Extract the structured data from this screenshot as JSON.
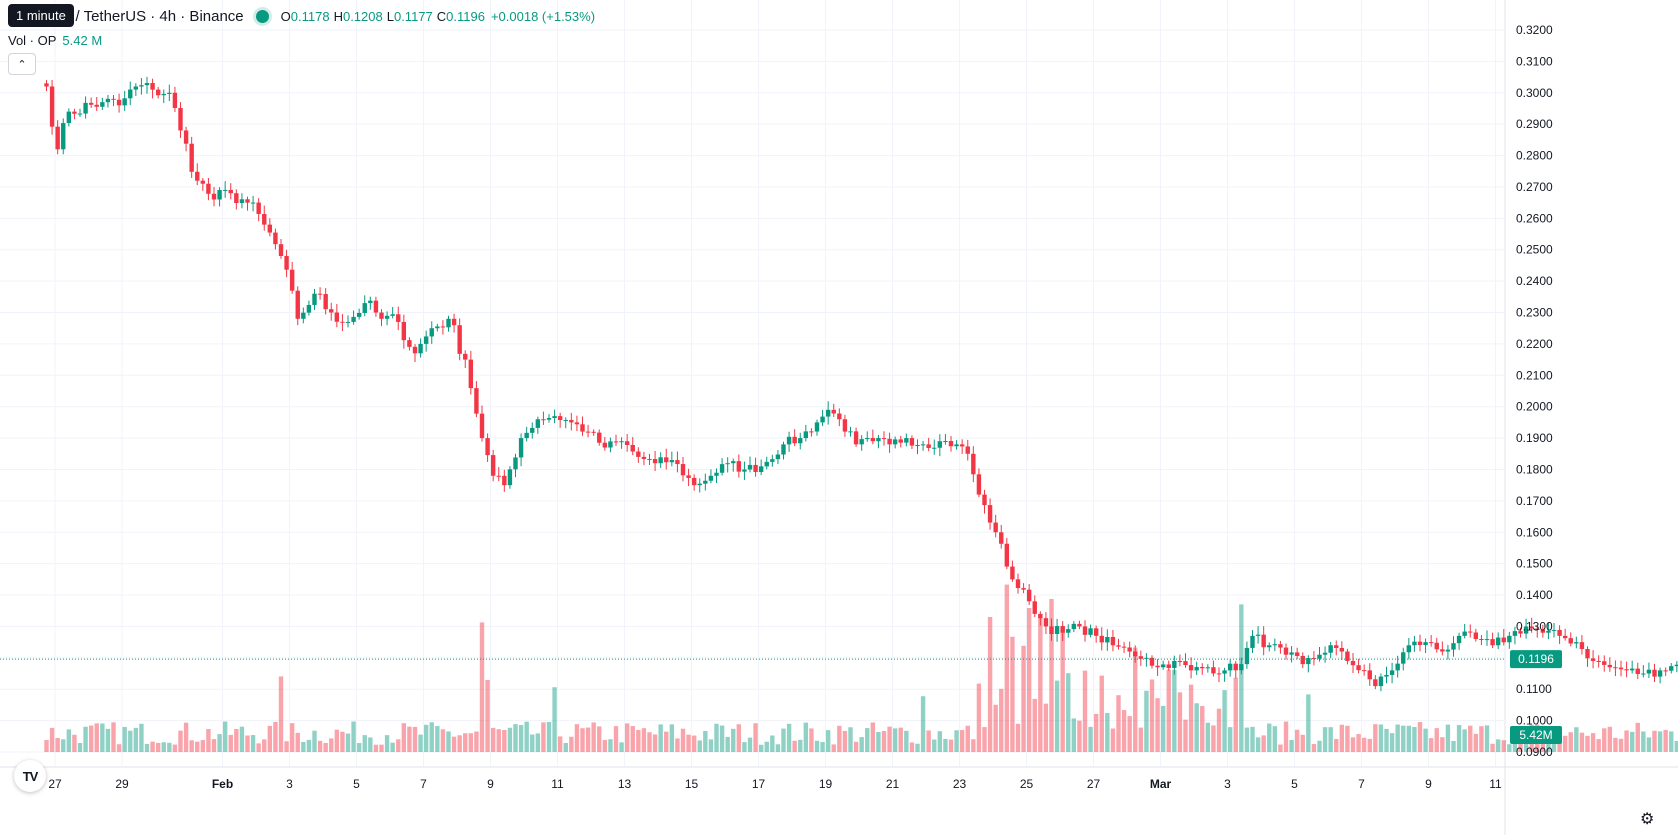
{
  "tooltip": "1 minute",
  "header": {
    "symbol": "Optimism / TetherUS · 4h · Binance",
    "open_label": "O",
    "open": "0.1178",
    "high_label": "H",
    "high": "0.1208",
    "low_label": "L",
    "low": "0.1177",
    "close_label": "C",
    "close": "0.1196",
    "change": "+0.0018 (+1.53%)"
  },
  "volume_legend": {
    "label": "Vol · OP",
    "value": "5.42 M"
  },
  "icons": {
    "collapse": "chevron-up-icon",
    "logo": "tradingview-logo-icon",
    "settings": "gear-icon"
  },
  "colors": {
    "up": "#089981",
    "down": "#F23645",
    "grid": "#F0F3FA",
    "axis_text": "#131722"
  },
  "chart_data": {
    "type": "candlestick",
    "interval": "4h",
    "y_ticks": [
      "0.3200",
      "0.3100",
      "0.3000",
      "0.2900",
      "0.2800",
      "0.2700",
      "0.2600",
      "0.2500",
      "0.2400",
      "0.2300",
      "0.2200",
      "0.2100",
      "0.2000",
      "0.1900",
      "0.1800",
      "0.1700",
      "0.1600",
      "0.1500",
      "0.1400",
      "0.1300",
      "0.1200",
      "0.1100",
      "0.1000",
      "0.0900"
    ],
    "ylim": [
      0.0895,
      0.32
    ],
    "x_ticks": [
      "27",
      "29",
      "Feb",
      "3",
      "5",
      "7",
      "9",
      "11",
      "13",
      "15",
      "17",
      "19",
      "21",
      "23",
      "25",
      "27",
      "Mar",
      "3",
      "5",
      "7",
      "9",
      "11"
    ],
    "x_tick_days": [
      0,
      2,
      5,
      7,
      9,
      11,
      13,
      15,
      17,
      19,
      21,
      23,
      25,
      27,
      29,
      31,
      33,
      35,
      37,
      39,
      41,
      43
    ],
    "candles_per_day": 6,
    "last_price": "0.1196",
    "volume_label": "5.42M",
    "close_anchors": [
      [
        0,
        0.302
      ],
      [
        2,
        0.282
      ],
      [
        4,
        0.294
      ],
      [
        10,
        0.297
      ],
      [
        13,
        0.296
      ],
      [
        16,
        0.302
      ],
      [
        19,
        0.301
      ],
      [
        22,
        0.3
      ],
      [
        24,
        0.288
      ],
      [
        27,
        0.272
      ],
      [
        30,
        0.266
      ],
      [
        33,
        0.268
      ],
      [
        36,
        0.265
      ],
      [
        39,
        0.258
      ],
      [
        42,
        0.248
      ],
      [
        45,
        0.228
      ],
      [
        48,
        0.236
      ],
      [
        51,
        0.23
      ],
      [
        54,
        0.227
      ],
      [
        57,
        0.233
      ],
      [
        60,
        0.228
      ],
      [
        63,
        0.227
      ],
      [
        66,
        0.217
      ],
      [
        69,
        0.225
      ],
      [
        72,
        0.228
      ],
      [
        75,
        0.215
      ],
      [
        78,
        0.19
      ],
      [
        80,
        0.178
      ],
      [
        82,
        0.175
      ],
      [
        85,
        0.19
      ],
      [
        88,
        0.196
      ],
      [
        91,
        0.197
      ],
      [
        94,
        0.195
      ],
      [
        97,
        0.192
      ],
      [
        100,
        0.187
      ],
      [
        103,
        0.189
      ],
      [
        106,
        0.184
      ],
      [
        109,
        0.182
      ],
      [
        112,
        0.183
      ],
      [
        116,
        0.175
      ],
      [
        119,
        0.178
      ],
      [
        122,
        0.182
      ],
      [
        125,
        0.18
      ],
      [
        128,
        0.181
      ],
      [
        132,
        0.188
      ],
      [
        135,
        0.19
      ],
      [
        138,
        0.195
      ],
      [
        140,
        0.199
      ],
      [
        142,
        0.196
      ],
      [
        145,
        0.188
      ],
      [
        148,
        0.189
      ],
      [
        151,
        0.188
      ],
      [
        154,
        0.19
      ],
      [
        157,
        0.188
      ],
      [
        160,
        0.189
      ],
      [
        163,
        0.188
      ],
      [
        165,
        0.185
      ],
      [
        167,
        0.172
      ],
      [
        170,
        0.16
      ],
      [
        173,
        0.145
      ],
      [
        176,
        0.138
      ],
      [
        179,
        0.13
      ],
      [
        182,
        0.128
      ],
      [
        185,
        0.13
      ],
      [
        188,
        0.127
      ],
      [
        191,
        0.124
      ],
      [
        194,
        0.122
      ],
      [
        197,
        0.12
      ],
      [
        199,
        0.117
      ],
      [
        202,
        0.119
      ],
      [
        205,
        0.116
      ],
      [
        208,
        0.117
      ],
      [
        211,
        0.116
      ],
      [
        214,
        0.118
      ],
      [
        216,
        0.127
      ],
      [
        219,
        0.124
      ],
      [
        222,
        0.121
      ],
      [
        225,
        0.118
      ],
      [
        228,
        0.121
      ],
      [
        230,
        0.124
      ],
      [
        233,
        0.119
      ],
      [
        236,
        0.116
      ],
      [
        238,
        0.111
      ],
      [
        241,
        0.116
      ],
      [
        244,
        0.124
      ],
      [
        247,
        0.125
      ],
      [
        250,
        0.122
      ],
      [
        253,
        0.127
      ],
      [
        256,
        0.126
      ],
      [
        259,
        0.124
      ],
      [
        262,
        0.127
      ],
      [
        265,
        0.13
      ],
      [
        268,
        0.128
      ],
      [
        271,
        0.127
      ],
      [
        274,
        0.125
      ],
      [
        277,
        0.119
      ],
      [
        280,
        0.117
      ],
      [
        283,
        0.116
      ],
      [
        286,
        0.115
      ],
      [
        289,
        0.116
      ],
      [
        292,
        0.1178
      ],
      [
        293,
        0.1196
      ]
    ],
    "volume_spikes": [
      [
        42,
        0.42
      ],
      [
        78,
        0.72
      ],
      [
        79,
        0.4
      ],
      [
        91,
        0.36
      ],
      [
        157,
        0.31
      ],
      [
        167,
        0.38
      ],
      [
        169,
        0.75
      ],
      [
        172,
        0.93
      ],
      [
        173,
        0.64
      ],
      [
        175,
        0.59
      ],
      [
        176,
        0.8
      ],
      [
        178,
        0.75
      ],
      [
        180,
        0.85
      ],
      [
        182,
        0.7
      ],
      [
        195,
        0.58
      ],
      [
        214,
        0.82
      ],
      [
        226,
        0.32
      ]
    ]
  }
}
